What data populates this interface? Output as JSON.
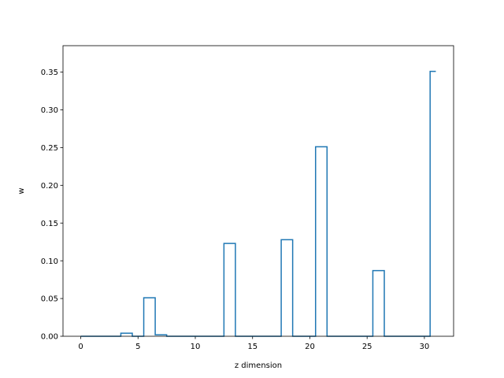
{
  "chart_data": {
    "type": "step",
    "title": "",
    "xlabel": "z dimension",
    "ylabel": "w",
    "xlim": [
      -1.55,
      32.55
    ],
    "ylim": [
      0,
      0.385
    ],
    "grid": false,
    "legend": "none",
    "line_color": "#1f77b4",
    "x_ticks": [
      0,
      5,
      10,
      15,
      20,
      25,
      30
    ],
    "y_ticks": [
      0.0,
      0.05,
      0.1,
      0.15,
      0.2,
      0.25,
      0.3,
      0.35
    ],
    "x_tick_labels": [
      "0",
      "5",
      "10",
      "15",
      "20",
      "25",
      "30"
    ],
    "y_tick_labels": [
      "0.00",
      "0.05",
      "0.10",
      "0.15",
      "0.20",
      "0.25",
      "0.30",
      "0.35"
    ],
    "x": [
      0,
      1,
      2,
      3,
      4,
      5,
      6,
      7,
      8,
      9,
      10,
      11,
      12,
      13,
      14,
      15,
      16,
      17,
      18,
      19,
      20,
      21,
      22,
      23,
      24,
      25,
      26,
      27,
      28,
      29,
      30,
      31
    ],
    "values": [
      0,
      0,
      0,
      0,
      0.004,
      0,
      0.051,
      0.002,
      0,
      0,
      0,
      0,
      0,
      0.123,
      0,
      0,
      0,
      0,
      0.128,
      0,
      0,
      0.251,
      0,
      0,
      0,
      0,
      0.087,
      0,
      0,
      0,
      0,
      0.351
    ]
  }
}
